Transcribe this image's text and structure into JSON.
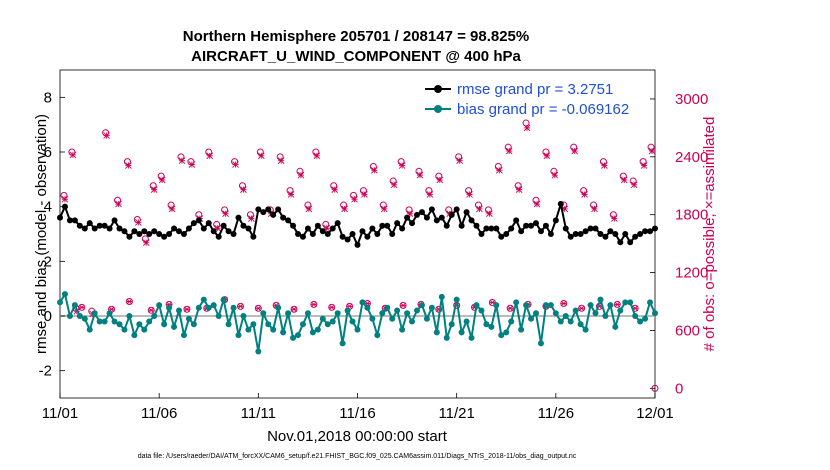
{
  "chart_data": {
    "type": "line",
    "title": "Northern Hemisphere 205701 / 208147 = 98.825%",
    "subtitle": "AIRCRAFT_U_WIND_COMPONENT @ 400 hPa",
    "xlabel": "Nov.01,2018 00:00:00 start",
    "ylabel_left": "rmse and bias (model - observation)",
    "ylabel_right": "# of obs: o=possible; ×=assimilated",
    "footer": "data file: /Users/raeder/DAI/ATM_forcXX/CAM6_setup/f.e21.FHIST_BGC.f09_025.CAM6assim.011/Diags_NTrS_2018-11/obs_diag_output.nc",
    "x_tick_labels": [
      "11/01",
      "11/06",
      "11/11",
      "11/16",
      "11/21",
      "11/26",
      "12/01"
    ],
    "x_ticks": [
      0,
      5,
      10,
      15,
      20,
      25,
      30
    ],
    "xlim": [
      0,
      30
    ],
    "ylim_left": [
      -3,
      9
    ],
    "yticks_left": [
      "-2",
      "0",
      "2",
      "4",
      "6",
      "8"
    ],
    "ylim_right": [
      -100,
      3300
    ],
    "yticks_right": [
      "0",
      "600",
      "1200",
      "1800",
      "2400",
      "3000"
    ],
    "legend": [
      {
        "name": "rmse grand pr = 3.2751",
        "color": "#000000"
      },
      {
        "name": "bias grand pr = -0.069162",
        "color": "#008080"
      }
    ],
    "colors": {
      "rmse": "#000000",
      "bias": "#008080",
      "obs": "#cc0055",
      "zero_line": "#bbbbbb",
      "legend_text": "#1f4fd6"
    },
    "series": [
      {
        "name": "rmse",
        "x": [
          0,
          0.25,
          0.5,
          0.75,
          1,
          1.25,
          1.5,
          1.75,
          2,
          2.25,
          2.5,
          2.75,
          3,
          3.25,
          3.5,
          3.75,
          4,
          4.25,
          4.5,
          4.75,
          5,
          5.25,
          5.5,
          5.75,
          6,
          6.25,
          6.5,
          6.75,
          7,
          7.25,
          7.5,
          7.75,
          8,
          8.25,
          8.5,
          8.75,
          9,
          9.25,
          9.5,
          9.75,
          10,
          10.25,
          10.5,
          10.75,
          11,
          11.25,
          11.5,
          11.75,
          12,
          12.25,
          12.5,
          12.75,
          13,
          13.25,
          13.5,
          13.75,
          14,
          14.25,
          14.5,
          14.75,
          15,
          15.25,
          15.5,
          15.75,
          16,
          16.25,
          16.5,
          16.75,
          17,
          17.25,
          17.5,
          17.75,
          18,
          18.25,
          18.5,
          18.75,
          19,
          19.25,
          19.5,
          19.75,
          20,
          20.25,
          20.5,
          20.75,
          21,
          21.25,
          21.5,
          21.75,
          22,
          22.25,
          22.5,
          22.75,
          23,
          23.25,
          23.5,
          23.75,
          24,
          24.25,
          24.5,
          24.75,
          25,
          25.25,
          25.5,
          25.75,
          26,
          26.25,
          26.5,
          26.75,
          27,
          27.25,
          27.5,
          27.75,
          28,
          28.25,
          28.5,
          28.75,
          29,
          29.25,
          29.5,
          29.75,
          30
        ],
        "values": [
          3.6,
          4.0,
          3.5,
          3.5,
          3.3,
          3.2,
          3.4,
          3.2,
          3.3,
          3.3,
          3.2,
          3.5,
          3.2,
          3.1,
          2.9,
          3.1,
          3.0,
          3.1,
          3.0,
          3.1,
          3.0,
          2.9,
          3.0,
          3.2,
          3.1,
          3.0,
          3.2,
          3.4,
          3.5,
          3.2,
          3.4,
          3.1,
          2.9,
          3.3,
          3.1,
          3.0,
          3.6,
          3.3,
          3.2,
          2.9,
          3.9,
          3.8,
          3.9,
          3.7,
          3.9,
          3.6,
          3.5,
          3.3,
          3.0,
          2.9,
          3.2,
          3.0,
          3.3,
          3.1,
          3.0,
          3.2,
          3.4,
          2.9,
          2.8,
          3.0,
          2.6,
          3.1,
          2.9,
          3.2,
          3.0,
          3.3,
          3.3,
          3.0,
          3.4,
          3.2,
          3.6,
          3.4,
          3.7,
          3.8,
          3.6,
          3.9,
          3.5,
          3.6,
          3.3,
          3.7,
          3.9,
          3.3,
          3.8,
          3.5,
          3.3,
          3.0,
          3.2,
          3.2,
          3.2,
          2.9,
          3.0,
          3.2,
          3.5,
          3.1,
          3.3,
          3.3,
          3.4,
          3.1,
          3.3,
          3.0,
          3.5,
          4.1,
          3.2,
          2.9,
          3.0,
          3.0,
          3.1,
          3.2,
          3.2,
          3.0,
          2.9,
          3.1,
          3.0,
          2.7,
          3.0,
          2.7,
          2.9,
          3.0,
          3.1,
          3.1,
          3.2
        ]
      },
      {
        "name": "bias",
        "x": [
          0,
          0.25,
          0.5,
          0.75,
          1,
          1.25,
          1.5,
          1.75,
          2,
          2.25,
          2.5,
          2.75,
          3,
          3.25,
          3.5,
          3.75,
          4,
          4.25,
          4.5,
          4.75,
          5,
          5.25,
          5.5,
          5.75,
          6,
          6.25,
          6.5,
          6.75,
          7,
          7.25,
          7.5,
          7.75,
          8,
          8.25,
          8.5,
          8.75,
          9,
          9.25,
          9.5,
          9.75,
          10,
          10.25,
          10.5,
          10.75,
          11,
          11.25,
          11.5,
          11.75,
          12,
          12.25,
          12.5,
          12.75,
          13,
          13.25,
          13.5,
          13.75,
          14,
          14.25,
          14.5,
          14.75,
          15,
          15.25,
          15.5,
          15.75,
          16,
          16.25,
          16.5,
          16.75,
          17,
          17.25,
          17.5,
          17.75,
          18,
          18.25,
          18.5,
          18.75,
          19,
          19.25,
          19.5,
          19.75,
          20,
          20.25,
          20.5,
          20.75,
          21,
          21.25,
          21.5,
          21.75,
          22,
          22.25,
          22.5,
          22.75,
          23,
          23.25,
          23.5,
          23.75,
          24,
          24.25,
          24.5,
          24.75,
          25,
          25.25,
          25.5,
          25.75,
          26,
          26.25,
          26.5,
          26.75,
          27,
          27.25,
          27.5,
          27.75,
          28,
          28.25,
          28.5,
          28.75,
          29,
          29.25,
          29.5,
          29.75,
          30
        ],
        "values": [
          0.5,
          0.8,
          0.0,
          0.4,
          0.0,
          -0.1,
          -0.5,
          0.1,
          -0.2,
          -0.2,
          0.1,
          -0.2,
          -0.3,
          -0.5,
          0.0,
          -0.7,
          -0.3,
          -0.5,
          -0.2,
          0.0,
          0.4,
          -0.3,
          0.3,
          -0.4,
          0.2,
          -0.7,
          -0.1,
          -0.3,
          0.3,
          0.6,
          0.3,
          0.4,
          0.0,
          0.6,
          -0.3,
          0.3,
          -0.7,
          0.0,
          -0.5,
          -0.3,
          -1.3,
          0.1,
          -0.3,
          -0.5,
          0.3,
          -0.6,
          0.1,
          -0.8,
          -0.7,
          -0.3,
          0.1,
          -0.6,
          -0.5,
          -0.1,
          -0.3,
          -0.2,
          0.1,
          -1.0,
          0.2,
          -0.2,
          -0.5,
          0.5,
          0.3,
          -0.1,
          -0.7,
          0.1,
          0.3,
          -0.1,
          0.2,
          -0.5,
          0.1,
          -0.2,
          0.2,
          0.4,
          -0.1,
          0.3,
          -0.6,
          0.7,
          -0.8,
          -0.3,
          0.6,
          -0.6,
          -0.2,
          -0.8,
          0.4,
          0.2,
          -0.3,
          -0.4,
          0.4,
          -0.7,
          -0.6,
          -0.2,
          0.5,
          -0.5,
          0.4,
          -0.1,
          0.1,
          -1.0,
          0.4,
          0.4,
          0.1,
          -0.2,
          0.0,
          -0.2,
          0.2,
          -0.3,
          -0.5,
          0.4,
          0.1,
          0.6,
          0.0,
          0.4,
          -0.4,
          0.2,
          0.5,
          0.5,
          0.0,
          -0.2,
          -0.1,
          0.5,
          0.1
        ]
      },
      {
        "name": "obs_possible",
        "axis": "right",
        "x": [
          0.2,
          0.6,
          0.8,
          1.6,
          2.3,
          2.9,
          3.4,
          3.9,
          4.3,
          4.7,
          5.1,
          5.6,
          6.1,
          6.6,
          7.0,
          7.5,
          7.9,
          8.3,
          8.8,
          9.2,
          9.6,
          10.1,
          10.6,
          11.1,
          11.6,
          12.1,
          12.5,
          12.9,
          13.4,
          13.8,
          14.3,
          14.8,
          15.3,
          15.8,
          16.3,
          16.8,
          17.2,
          17.6,
          18.1,
          18.6,
          19.1,
          19.6,
          20.1,
          20.6,
          21.1,
          21.6,
          22.1,
          22.6,
          23.1,
          23.5,
          24.0,
          24.5,
          24.9,
          25.4,
          25.9,
          26.4,
          26.9,
          27.4,
          27.9,
          28.4,
          28.9,
          29.4,
          29.8
        ],
        "values": [
          2000,
          2450,
          830,
          800,
          2650,
          1950,
          2350,
          1750,
          1550,
          2100,
          2200,
          1900,
          2400,
          2350,
          1800,
          2450,
          1700,
          1850,
          2350,
          2100,
          1800,
          2450,
          1850,
          2400,
          2050,
          2250,
          1900,
          2450,
          1700,
          2100,
          1900,
          2000,
          2050,
          2300,
          1900,
          2150,
          2350,
          1850,
          2250,
          2050,
          2200,
          1850,
          2400,
          2050,
          1900,
          1850,
          2300,
          2500,
          2100,
          2750,
          1950,
          2450,
          2250,
          1900,
          2500,
          2050,
          1900,
          2350,
          1800,
          2200,
          2150,
          2350,
          2500
        ]
      },
      {
        "name": "obs_assimilated",
        "axis": "right",
        "x": [
          0.25,
          0.65,
          0.85,
          1.65,
          2.35,
          2.95,
          3.45,
          3.95,
          4.35,
          4.75,
          5.15,
          5.65,
          6.15,
          6.65,
          7.05,
          7.55,
          7.95,
          8.35,
          8.85,
          9.25,
          9.65,
          10.15,
          10.65,
          11.15,
          11.65,
          12.15,
          12.55,
          12.95,
          13.45,
          13.85,
          14.35,
          14.85,
          15.35,
          15.85,
          16.35,
          16.85,
          17.25,
          17.65,
          18.15,
          18.65,
          19.15,
          19.65,
          20.15,
          20.65,
          21.15,
          21.65,
          22.15,
          22.65,
          23.15,
          23.55,
          24.05,
          24.55,
          24.95,
          25.45,
          25.95,
          26.45,
          26.95,
          27.45,
          27.95,
          28.45,
          28.95,
          29.45,
          29.85
        ],
        "values": [
          1960,
          2420,
          800,
          770,
          2620,
          1910,
          2310,
          1720,
          1510,
          2060,
          2160,
          1860,
          2360,
          2320,
          1760,
          2410,
          1660,
          1810,
          2320,
          2060,
          1760,
          2410,
          1810,
          2360,
          2010,
          2210,
          1860,
          2410,
          1660,
          2060,
          1860,
          1960,
          2010,
          2260,
          1860,
          2110,
          2310,
          1810,
          2210,
          2010,
          2160,
          1810,
          2360,
          2010,
          1860,
          1810,
          2260,
          2460,
          2060,
          2700,
          1910,
          2410,
          2210,
          1860,
          2460,
          2010,
          1860,
          2310,
          1760,
          2160,
          2110,
          2310,
          2460
        ]
      },
      {
        "name": "obs_possible_low",
        "axis": "right",
        "x": [
          1.1,
          2.6,
          3.5,
          4.6,
          5.5,
          6.4,
          7.4,
          8.3,
          9.1,
          10.0,
          10.9,
          11.8,
          12.8,
          13.7,
          14.6,
          15.5,
          16.4,
          17.3,
          18.2,
          19.1,
          20.0,
          20.9,
          21.8,
          22.7,
          23.6,
          24.5,
          25.4,
          26.3,
          27.2,
          28.1,
          29.0
        ],
        "values": [
          840,
          820,
          900,
          810,
          870,
          820,
          830,
          920,
          850,
          830,
          860,
          820,
          870,
          840,
          850,
          880,
          830,
          860,
          870,
          820,
          860,
          840,
          890,
          830,
          870,
          850,
          880,
          830,
          850,
          870,
          830
        ]
      }
    ]
  }
}
